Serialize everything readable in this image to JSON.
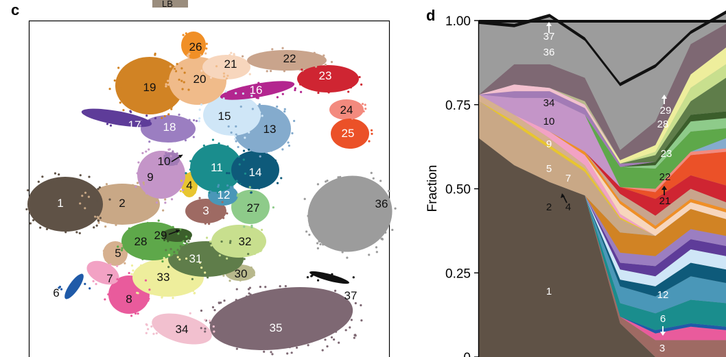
{
  "top_fragment": {
    "text": "LB"
  },
  "panels": [
    {
      "label": "c"
    },
    {
      "label": "d"
    }
  ],
  "chart_data": [
    {
      "type": "scatter",
      "panel": "c",
      "description_free": true,
      "clusters": [
        {
          "id": "1",
          "color": "#5f5246"
        },
        {
          "id": "2",
          "color": "#c9a886"
        },
        {
          "id": "3",
          "color": "#9e6a63"
        },
        {
          "id": "4",
          "color": "#e8c530"
        },
        {
          "id": "5",
          "color": "#d6b08f"
        },
        {
          "id": "6",
          "color": "#1f5aa8"
        },
        {
          "id": "7",
          "color": "#f2a2c4"
        },
        {
          "id": "8",
          "color": "#e95b9c"
        },
        {
          "id": "9",
          "color": "#c495c8"
        },
        {
          "id": "10",
          "color": "#a27bb6"
        },
        {
          "id": "11",
          "color": "#1a8d8d"
        },
        {
          "id": "12",
          "color": "#4a97b8"
        },
        {
          "id": "13",
          "color": "#84abcd"
        },
        {
          "id": "14",
          "color": "#0e5a7a"
        },
        {
          "id": "15",
          "color": "#cfe6f7"
        },
        {
          "id": "16",
          "color": "#b3268f"
        },
        {
          "id": "17",
          "color": "#5e3c99"
        },
        {
          "id": "18",
          "color": "#9b7ec1"
        },
        {
          "id": "19",
          "color": "#d18324"
        },
        {
          "id": "20",
          "color": "#f0bb8a"
        },
        {
          "id": "21",
          "color": "#f7d6bd"
        },
        {
          "id": "22",
          "color": "#c9a48c"
        },
        {
          "id": "23",
          "color": "#cf2532"
        },
        {
          "id": "24",
          "color": "#f38a7e"
        },
        {
          "id": "25",
          "color": "#eb5128"
        },
        {
          "id": "26",
          "color": "#f08f26"
        },
        {
          "id": "27",
          "color": "#8ecb8a"
        },
        {
          "id": "28",
          "color": "#5ea84a"
        },
        {
          "id": "29",
          "color": "#3b5e2b"
        },
        {
          "id": "30",
          "color": "#b8b88c"
        },
        {
          "id": "31",
          "color": "#5f7d4a"
        },
        {
          "id": "32",
          "color": "#c8df8e"
        },
        {
          "id": "33",
          "color": "#eeee9c"
        },
        {
          "id": "34",
          "color": "#f2c0cf"
        },
        {
          "id": "35",
          "color": "#7e6873"
        },
        {
          "id": "36",
          "color": "#9c9c9c"
        },
        {
          "id": "37",
          "color": "#111111"
        }
      ]
    },
    {
      "type": "area",
      "panel": "d",
      "ylabel": "Fraction",
      "ylim": [
        0,
        1
      ],
      "yticks": [
        "0",
        "0.25",
        "0.50",
        "0.75",
        "1.00"
      ],
      "ytick_values": [
        0,
        0.25,
        0.5,
        0.75,
        1.0
      ],
      "x": [
        0,
        1,
        2,
        3,
        4,
        5,
        6,
        7
      ],
      "stacked": true,
      "series": [
        {
          "id": "1",
          "color": "#5f5246",
          "values": [
            0.65,
            0.57,
            0.52,
            0.48,
            0.1,
            0.0,
            0.0,
            0.0
          ]
        },
        {
          "id": "3",
          "color": "#9e6a63",
          "values": [
            0.0,
            0.0,
            0.0,
            0.0,
            0.02,
            0.05,
            0.05,
            0.05
          ]
        },
        {
          "id": "8",
          "color": "#e95b9c",
          "values": [
            0.0,
            0.0,
            0.0,
            0.0,
            0.0,
            0.02,
            0.04,
            0.03
          ]
        },
        {
          "id": "6",
          "color": "#1f5aa8",
          "values": [
            0.0,
            0.0,
            0.0,
            0.0,
            0.0,
            0.01,
            0.01,
            0.01
          ]
        },
        {
          "id": "11",
          "color": "#1a8d8d",
          "values": [
            0.0,
            0.0,
            0.0,
            0.0,
            0.04,
            0.05,
            0.07,
            0.07
          ]
        },
        {
          "id": "12",
          "color": "#4a97b8",
          "values": [
            0.0,
            0.0,
            0.0,
            0.0,
            0.05,
            0.05,
            0.07,
            0.06
          ]
        },
        {
          "id": "14",
          "color": "#0e5a7a",
          "values": [
            0.0,
            0.0,
            0.0,
            0.0,
            0.02,
            0.03,
            0.04,
            0.04
          ]
        },
        {
          "id": "15",
          "color": "#cfe6f7",
          "values": [
            0.0,
            0.0,
            0.0,
            0.0,
            0.03,
            0.03,
            0.04,
            0.04
          ]
        },
        {
          "id": "17",
          "color": "#5e3c99",
          "values": [
            0.0,
            0.0,
            0.0,
            0.0,
            0.02,
            0.03,
            0.03,
            0.03
          ]
        },
        {
          "id": "18",
          "color": "#9b7ec1",
          "values": [
            0.0,
            0.0,
            0.0,
            0.0,
            0.03,
            0.03,
            0.03,
            0.03
          ]
        },
        {
          "id": "19",
          "color": "#d18324",
          "values": [
            0.0,
            0.0,
            0.0,
            0.0,
            0.06,
            0.06,
            0.06,
            0.05
          ]
        },
        {
          "id": "2",
          "color": "#c9a886",
          "values": [
            0.11,
            0.12,
            0.1,
            0.07,
            0.04,
            0.0,
            0.0,
            0.0
          ]
        },
        {
          "id": "4",
          "color": "#e8c530",
          "values": [
            0.0,
            0.01,
            0.01,
            0.01,
            0.005,
            0.0,
            0.0,
            0.0
          ]
        },
        {
          "id": "5",
          "color": "#d6b08f",
          "values": [
            0.02,
            0.02,
            0.02,
            0.01,
            0.0,
            0.0,
            0.0,
            0.0
          ]
        },
        {
          "id": "7",
          "color": "#f2a2c4",
          "values": [
            0.0,
            0.0,
            0.02,
            0.03,
            0.01,
            0.0,
            0.0,
            0.0
          ]
        },
        {
          "id": "21",
          "color": "#f7d6bd",
          "values": [
            0.0,
            0.0,
            0.0,
            0.0,
            0.03,
            0.02,
            0.02,
            0.02
          ]
        },
        {
          "id": "26",
          "color": "#f08f26",
          "values": [
            0.0,
            0.0,
            0.0,
            0.01,
            0.01,
            0.01,
            0.01,
            0.01
          ]
        },
        {
          "id": "22",
          "color": "#c9a48c",
          "values": [
            0.0,
            0.0,
            0.0,
            0.0,
            0.02,
            0.03,
            0.03,
            0.02
          ]
        },
        {
          "id": "23",
          "color": "#cf2532",
          "values": [
            0.0,
            0.0,
            0.0,
            0.0,
            0.02,
            0.05,
            0.04,
            0.05
          ]
        },
        {
          "id": "25",
          "color": "#eb5128",
          "values": [
            0.0,
            0.0,
            0.0,
            0.0,
            0.0,
            0.02,
            0.06,
            0.1
          ]
        },
        {
          "id": "24",
          "color": "#f38a7e",
          "values": [
            0.0,
            0.0,
            0.0,
            0.0,
            0.0,
            0.01,
            0.01,
            0.01
          ]
        },
        {
          "id": "9",
          "color": "#c495c8",
          "values": [
            0.0,
            0.05,
            0.1,
            0.11,
            0.0,
            0.0,
            0.0,
            0.0
          ]
        },
        {
          "id": "13",
          "color": "#84abcd",
          "values": [
            0.0,
            0.0,
            0.0,
            0.0,
            0.0,
            0.0,
            0.0,
            0.03
          ]
        },
        {
          "id": "28",
          "color": "#5ea84a",
          "values": [
            0.0,
            0.0,
            0.0,
            0.0,
            0.06,
            0.06,
            0.06,
            0.03
          ]
        },
        {
          "id": "27",
          "color": "#8ecb8a",
          "values": [
            0.0,
            0.0,
            0.0,
            0.0,
            0.0,
            0.01,
            0.03,
            0.03
          ]
        },
        {
          "id": "29",
          "color": "#3b5e2b",
          "values": [
            0.0,
            0.0,
            0.0,
            0.0,
            0.0,
            0.01,
            0.02,
            0.02
          ]
        },
        {
          "id": "10",
          "color": "#a27bb6",
          "values": [
            0.0,
            0.02,
            0.02,
            0.02,
            0.01,
            0.0,
            0.0,
            0.0
          ]
        },
        {
          "id": "31",
          "color": "#5f7d4a",
          "values": [
            0.0,
            0.0,
            0.0,
            0.0,
            0.0,
            0.02,
            0.04,
            0.1
          ]
        },
        {
          "id": "32",
          "color": "#c8df8e",
          "values": [
            0.0,
            0.0,
            0.0,
            0.0,
            0.0,
            0.01,
            0.04,
            0.04
          ]
        },
        {
          "id": "33",
          "color": "#eeee9c",
          "values": [
            0.0,
            0.0,
            0.0,
            0.0,
            0.01,
            0.02,
            0.04,
            0.05
          ]
        },
        {
          "id": "34",
          "color": "#f2c0cf",
          "values": [
            0.0,
            0.02,
            0.01,
            0.01,
            0.0,
            0.0,
            0.0,
            0.0
          ]
        },
        {
          "id": "30",
          "color": "#b8b88c",
          "values": [
            0.0,
            0.0,
            0.0,
            0.01,
            0.0,
            0.0,
            0.0,
            0.0
          ]
        },
        {
          "id": "35",
          "color": "#7e6873",
          "values": [
            0.0,
            0.06,
            0.07,
            0.07,
            0.03,
            0.07,
            0.09,
            0.07
          ]
        },
        {
          "id": "36",
          "color": "#9c9c9c",
          "values": [
            0.21,
            0.11,
            0.14,
            0.11,
            0.19,
            0.16,
            0.03,
            0.03
          ]
        },
        {
          "id": "16",
          "color": "#b3268f",
          "values": [
            0.0,
            0.0,
            0.0,
            0.0,
            0.0,
            0.0,
            0.0,
            0.0
          ]
        },
        {
          "id": "20",
          "color": "#f0bb8a",
          "values": [
            0.0,
            0.0,
            0.0,
            0.0,
            0.0,
            0.0,
            0.0,
            0.0
          ]
        },
        {
          "id": "37",
          "color": "#111111",
          "values": [
            0.01,
            0.01,
            0.01,
            0.01,
            0.01,
            0.01,
            0.01,
            0.01
          ]
        }
      ],
      "labels_shown": [
        "37",
        "36",
        "34",
        "10",
        "9",
        "5",
        "7",
        "2",
        "4",
        "1",
        "29",
        "28",
        "23",
        "22",
        "21",
        "12",
        "6",
        "3"
      ]
    }
  ]
}
